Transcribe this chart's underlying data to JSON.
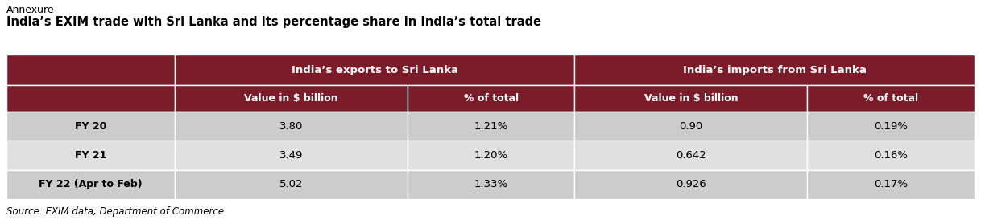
{
  "annexure_text": "Annexure",
  "title": "India’s EXIM trade with Sri Lanka and its percentage share in India’s total trade",
  "source": "Source: EXIM data, Department of Commerce",
  "header_bg": "#7B1C2A",
  "header_text_color": "#FFFFFF",
  "row_bg_odd": "#CCCCCC",
  "row_bg_even": "#E0E0E0",
  "col_header1": "India’s exports to Sri Lanka",
  "col_header2": "India’s imports from Sri Lanka",
  "sub_headers": [
    "Value in $ billion",
    "% of total",
    "Value in $ billion",
    "% of total"
  ],
  "row_labels": [
    "FY 20",
    "FY 21",
    "FY 22 (Apr to Feb)"
  ],
  "data": [
    [
      "3.80",
      "1.21%",
      "0.90",
      "0.19%"
    ],
    [
      "3.49",
      "1.20%",
      "0.642",
      "0.16%"
    ],
    [
      "5.02",
      "1.33%",
      "0.926",
      "0.17%"
    ]
  ],
  "figsize": [
    12.18,
    2.79
  ],
  "dpi": 100
}
